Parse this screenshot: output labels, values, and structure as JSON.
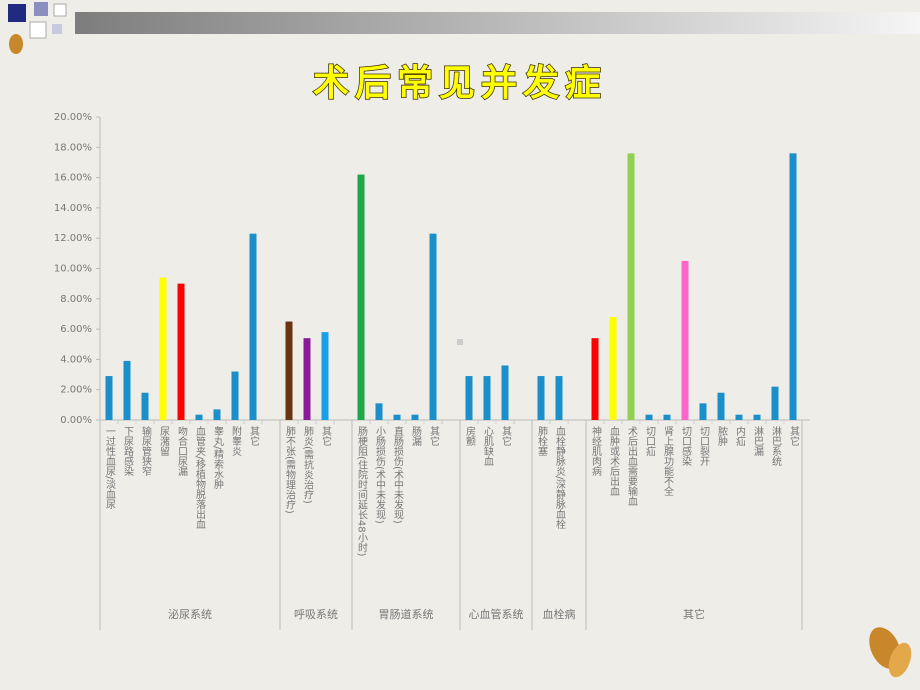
{
  "chart_data": {
    "type": "bar",
    "title": "术后常见并发症",
    "color": "#1a8fc9",
    "ylim": [
      0,
      20
    ],
    "yticks": [
      {
        "value": 0,
        "label": "0.00%"
      },
      {
        "value": 2,
        "label": "2.00%"
      },
      {
        "value": 4,
        "label": "4.00%"
      },
      {
        "value": 6,
        "label": "6.00%"
      },
      {
        "value": 8,
        "label": "8.00%"
      },
      {
        "value": 10,
        "label": "10.00%"
      },
      {
        "value": 12,
        "label": "12.00%"
      },
      {
        "value": 14,
        "label": "14.00%"
      },
      {
        "value": 16,
        "label": "16.00%"
      },
      {
        "value": 18,
        "label": "18.00%"
      },
      {
        "value": 20,
        "label": "20.00%"
      }
    ],
    "groups": [
      {
        "name": "泌尿系统",
        "categories": [
          "一过性血尿/淡血尿",
          "下尿路感染",
          "输尿管狭窄",
          "尿潴留",
          "吻合口尿漏",
          "血管夹/移植物脱落出血",
          "睾丸/精索水肿",
          "附睾炎",
          "其它"
        ],
        "values": [
          2.9,
          3.9,
          1.8,
          9.4,
          9.0,
          0.35,
          0.7,
          3.2,
          12.3
        ],
        "colors": [
          "#1a8fc9",
          "#1a8fc9",
          "#1a8fc9",
          "#ffff00",
          "#ff0000",
          "#1a8fc9",
          "#1a8fc9",
          "#1a8fc9",
          "#1a8fc9"
        ]
      },
      {
        "name": "呼吸系统",
        "categories": [
          "肺不张(需物理治疗)",
          "肺炎(需抗炎治疗)",
          "其它"
        ],
        "values": [
          6.5,
          5.4,
          5.8
        ],
        "colors": [
          "#6b3410",
          "#8b1a9a",
          "#1aa0e8"
        ]
      },
      {
        "name": "胃肠道系统",
        "categories": [
          "肠梗阻(住院时间延长48小时)",
          "小肠损伤(术中未发现)",
          "直肠损伤(术中未发现)",
          "肠漏",
          "其它"
        ],
        "values": [
          16.2,
          1.1,
          0.35,
          0.35,
          12.3
        ],
        "colors": [
          "#1fa84a",
          "#1a8fc9",
          "#1a8fc9",
          "#1a8fc9",
          "#1a8fc9"
        ]
      },
      {
        "name": "心血管系统",
        "categories": [
          "房颤",
          "心肌缺血",
          "其它"
        ],
        "values": [
          2.9,
          2.9,
          3.6
        ],
        "colors": [
          "#1a8fc9",
          "#1a8fc9",
          "#1a8fc9"
        ]
      },
      {
        "name": "血栓病",
        "categories": [
          "肺栓塞",
          "血栓静脉炎/深静脉血栓"
        ],
        "values": [
          2.9,
          2.9
        ],
        "colors": [
          "#1a8fc9",
          "#1a8fc9"
        ]
      },
      {
        "name": "其它",
        "categories": [
          "神经肌肉病",
          "血肿或术后出血",
          "术后出血需要输血",
          "切口疝",
          "肾上腺功能不全",
          "切口感染",
          "切口裂开",
          "脓肿",
          "内疝",
          "淋巴漏",
          "淋巴系统",
          "其它"
        ],
        "values": [
          5.4,
          6.8,
          17.6,
          0.35,
          0.35,
          10.5,
          1.1,
          1.8,
          0.35,
          0.35,
          2.2,
          17.6
        ],
        "colors": [
          "#ff0000",
          "#ffff00",
          "#92d050",
          "#1a8fc9",
          "#1a8fc9",
          "#ff66cc",
          "#1a8fc9",
          "#1a8fc9",
          "#1a8fc9",
          "#1a8fc9",
          "#1a8fc9",
          "#1a8fc9"
        ]
      }
    ]
  }
}
